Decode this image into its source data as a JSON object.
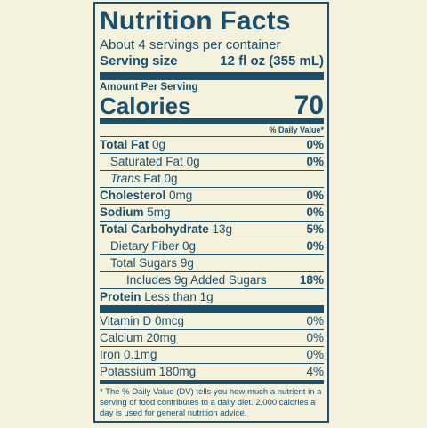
{
  "title": "Nutrition Facts",
  "servings_per_container": "About 4 servings per container",
  "serving_size": {
    "label": "Serving size",
    "value": "12 fl oz (355 mL)"
  },
  "amount_per_serving": "Amount Per Serving",
  "calories": {
    "label": "Calories",
    "value": "70"
  },
  "daily_value_header": "% Daily Value*",
  "nutrients": [
    {
      "name": "Total Fat",
      "amount": "0g",
      "dv": "0%"
    },
    {
      "name": "Saturated Fat",
      "amount": "0g",
      "dv": "0%"
    },
    {
      "name": "Trans",
      "amount": "Fat 0g",
      "dv": ""
    },
    {
      "name": "Cholesterol",
      "amount": "0mg",
      "dv": "0%"
    },
    {
      "name": "Sodium",
      "amount": "5mg",
      "dv": "0%"
    },
    {
      "name": "Total Carbohydrate",
      "amount": "13g",
      "dv": "5%"
    },
    {
      "name": "Dietary Fiber",
      "amount": "0g",
      "dv": "0%"
    },
    {
      "name": "Total Sugars",
      "amount": "9g",
      "dv": ""
    },
    {
      "name": "Includes 9g Added Sugars",
      "amount": "",
      "dv": "18%"
    },
    {
      "name": "Protein",
      "amount": "Less than 1g",
      "dv": ""
    }
  ],
  "vitamins": [
    {
      "name": "Vitamin D",
      "amount": "0mcg",
      "dv": "0%"
    },
    {
      "name": "Calcium",
      "amount": "20mg",
      "dv": "0%"
    },
    {
      "name": "Iron",
      "amount": "0.1mg",
      "dv": "0%"
    },
    {
      "name": "Potassium",
      "amount": "180mg",
      "dv": "4%"
    }
  ],
  "footnote": "* The % Daily Value (DV) tells you how much a nutrient in a serving of food contributes to a daily diet. 2,000 calories a day is used for general nutrition advice.",
  "colors": {
    "ink": "#1a4f6e",
    "background": "#f4f1dd"
  }
}
